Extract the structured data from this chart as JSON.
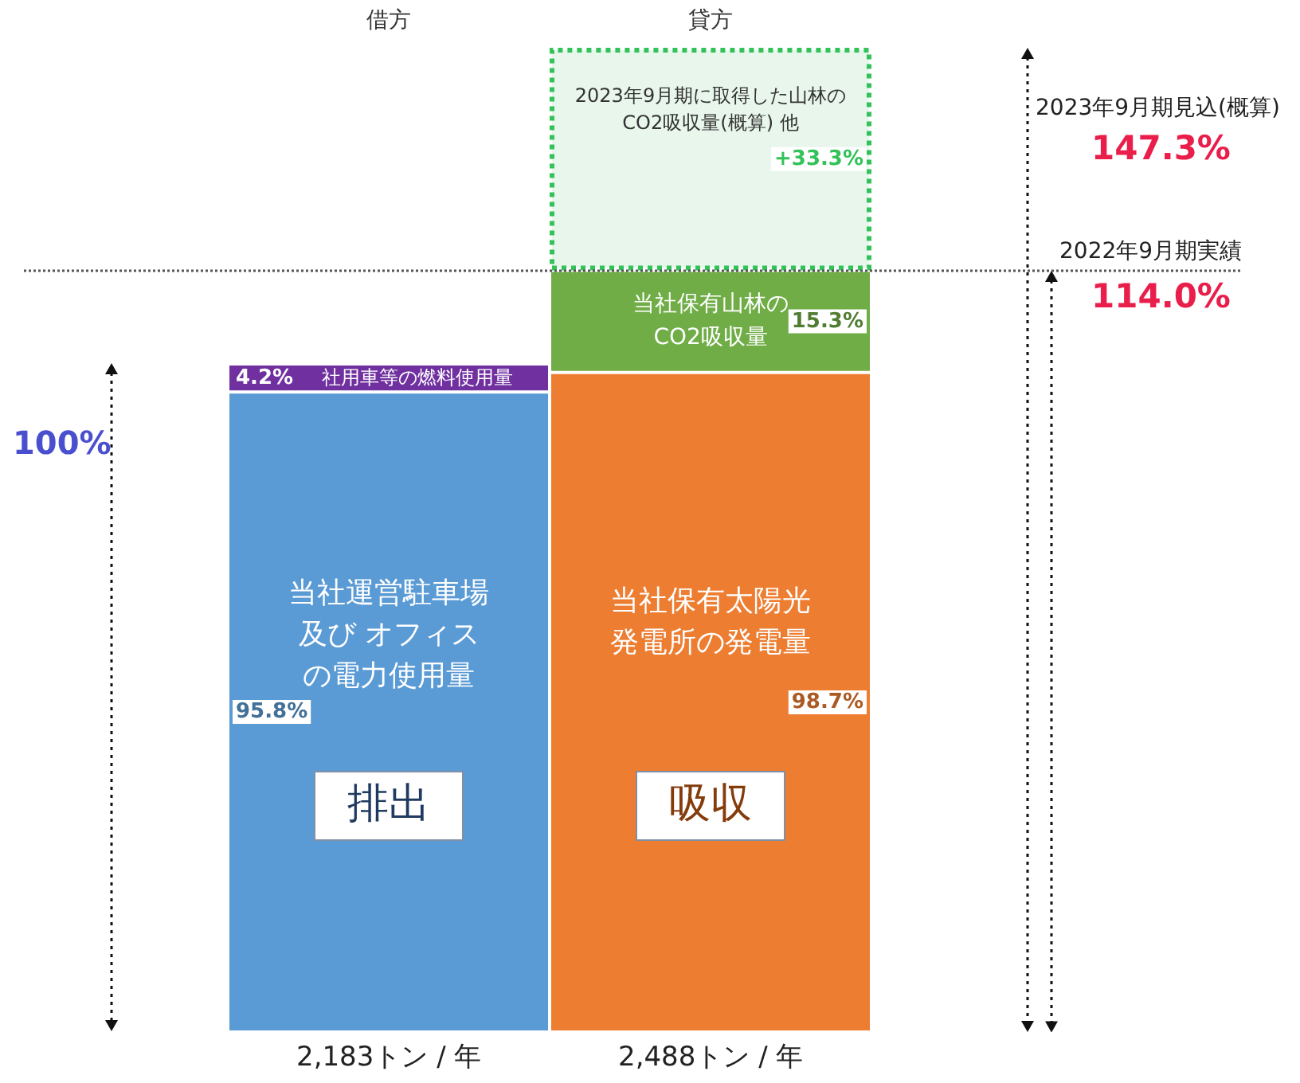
{
  "chart_data": {
    "type": "bar",
    "stacked": true,
    "categories": [
      "借方",
      "貸方"
    ],
    "series": [
      {
        "name": "当社運営駐車場及び オフィスの電力使用量",
        "color": "#5b9bd5",
        "values": [
          95.8,
          null
        ],
        "value_labels": [
          "95.8%",
          null
        ]
      },
      {
        "name": "社用車等の燃料使用量",
        "color": "#7030a0",
        "values": [
          4.2,
          null
        ],
        "value_labels": [
          "4.2%",
          null
        ]
      },
      {
        "name": "当社保有太陽光発電所の発電量",
        "color": "#ed7d31",
        "values": [
          null,
          98.7
        ],
        "value_labels": [
          null,
          "98.7%"
        ]
      },
      {
        "name": "当社保有山林のCO2吸収量",
        "color": "#70ad47",
        "values": [
          null,
          15.3
        ],
        "value_labels": [
          null,
          "15.3%"
        ]
      },
      {
        "name": "2023年9月期に取得した山林のCO2吸収量(概算) 他",
        "color": "#e8f6ec",
        "line_style": "dotted",
        "values": [
          null,
          33.3
        ],
        "value_labels": [
          null,
          "+33.3%"
        ]
      }
    ],
    "tick_labels": "x",
    "grid": false,
    "legend": false,
    "ref_lines": [
      {
        "axis": "y",
        "value": 114,
        "label": "114.0%",
        "line_style": "dotted",
        "color": "#555555"
      }
    ],
    "annotations": [
      "100%",
      "2022年9月期実績",
      "2023年9月期見込(概算)",
      "147.3%",
      "排出",
      "吸収",
      "2,183トン / 年",
      "2,488トン / 年"
    ]
  }
}
